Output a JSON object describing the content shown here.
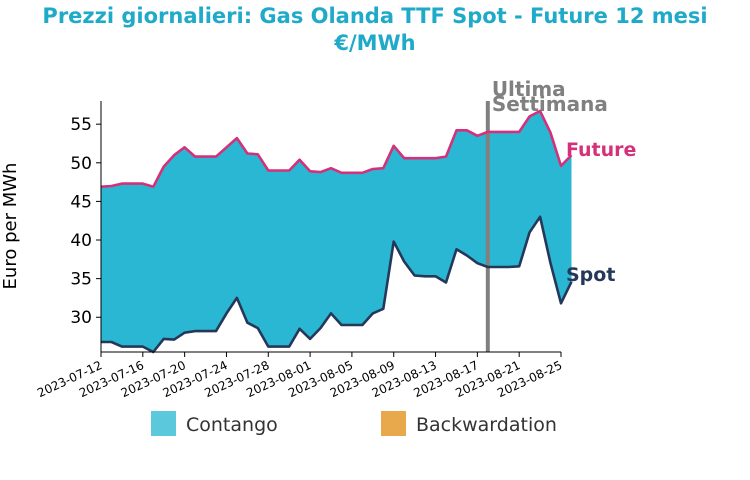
{
  "chart_data": {
    "type": "area",
    "title_line1": "Prezzi giornalieri: Gas Olanda TTF Spot - Future 12 mesi",
    "title_line2": "€/MWh",
    "ylabel": "Euro per MWh",
    "ylim": [
      25.5,
      58
    ],
    "yticks": [
      30,
      35,
      40,
      45,
      50,
      55
    ],
    "x_start": "2023-07-12",
    "x_end": "2023-08-25",
    "xticks": [
      "2023-07-12",
      "2023-07-16",
      "2023-07-20",
      "2023-07-24",
      "2023-07-28",
      "2023-08-01",
      "2023-08-05",
      "2023-08-09",
      "2023-08-13",
      "2023-08-17",
      "2023-08-21",
      "2023-08-25"
    ],
    "series": [
      {
        "name": "Future",
        "color": "#d4317a",
        "points": [
          [
            "2023-07-12",
            46.9
          ],
          [
            "2023-07-13",
            47.0
          ],
          [
            "2023-07-14",
            47.3
          ],
          [
            "2023-07-15",
            47.3
          ],
          [
            "2023-07-16",
            47.3
          ],
          [
            "2023-07-17",
            46.9
          ],
          [
            "2023-07-18",
            49.5
          ],
          [
            "2023-07-19",
            51.0
          ],
          [
            "2023-07-20",
            52.0
          ],
          [
            "2023-07-21",
            50.8
          ],
          [
            "2023-07-22",
            50.8
          ],
          [
            "2023-07-23",
            50.8
          ],
          [
            "2023-07-24",
            52.0
          ],
          [
            "2023-07-25",
            53.2
          ],
          [
            "2023-07-26",
            51.2
          ],
          [
            "2023-07-27",
            51.1
          ],
          [
            "2023-07-28",
            49.0
          ],
          [
            "2023-07-29",
            49.0
          ],
          [
            "2023-07-30",
            49.0
          ],
          [
            "2023-07-31",
            50.4
          ],
          [
            "2023-08-01",
            48.9
          ],
          [
            "2023-08-02",
            48.8
          ],
          [
            "2023-08-03",
            49.3
          ],
          [
            "2023-08-04",
            48.7
          ],
          [
            "2023-08-05",
            48.7
          ],
          [
            "2023-08-06",
            48.7
          ],
          [
            "2023-08-07",
            49.2
          ],
          [
            "2023-08-08",
            49.3
          ],
          [
            "2023-08-09",
            52.2
          ],
          [
            "2023-08-10",
            50.6
          ],
          [
            "2023-08-11",
            50.6
          ],
          [
            "2023-08-12",
            50.6
          ],
          [
            "2023-08-13",
            50.6
          ],
          [
            "2023-08-14",
            50.8
          ],
          [
            "2023-08-15",
            54.2
          ],
          [
            "2023-08-16",
            54.2
          ],
          [
            "2023-08-17",
            53.5
          ],
          [
            "2023-08-18",
            54.0
          ],
          [
            "2023-08-19",
            54.0
          ],
          [
            "2023-08-20",
            54.0
          ],
          [
            "2023-08-21",
            54.0
          ],
          [
            "2023-08-22",
            56.0
          ],
          [
            "2023-08-23",
            56.7
          ],
          [
            "2023-08-24",
            53.9
          ],
          [
            "2023-08-25",
            49.6
          ],
          [
            "2023-08-26",
            51.0
          ]
        ]
      },
      {
        "name": "Spot",
        "color": "#25385a",
        "points": [
          [
            "2023-07-12",
            26.8
          ],
          [
            "2023-07-13",
            26.8
          ],
          [
            "2023-07-14",
            26.2
          ],
          [
            "2023-07-15",
            26.2
          ],
          [
            "2023-07-16",
            26.2
          ],
          [
            "2023-07-17",
            25.5
          ],
          [
            "2023-07-18",
            27.2
          ],
          [
            "2023-07-19",
            27.1
          ],
          [
            "2023-07-20",
            28.0
          ],
          [
            "2023-07-21",
            28.2
          ],
          [
            "2023-07-22",
            28.2
          ],
          [
            "2023-07-23",
            28.2
          ],
          [
            "2023-07-24",
            30.5
          ],
          [
            "2023-07-25",
            32.5
          ],
          [
            "2023-07-26",
            29.3
          ],
          [
            "2023-07-27",
            28.6
          ],
          [
            "2023-07-28",
            26.2
          ],
          [
            "2023-07-29",
            26.2
          ],
          [
            "2023-07-30",
            26.2
          ],
          [
            "2023-07-31",
            28.5
          ],
          [
            "2023-08-01",
            27.2
          ],
          [
            "2023-08-02",
            28.6
          ],
          [
            "2023-08-03",
            30.5
          ],
          [
            "2023-08-04",
            29.0
          ],
          [
            "2023-08-05",
            29.0
          ],
          [
            "2023-08-06",
            29.0
          ],
          [
            "2023-08-07",
            30.5
          ],
          [
            "2023-08-08",
            31.1
          ],
          [
            "2023-08-09",
            39.8
          ],
          [
            "2023-08-10",
            37.2
          ],
          [
            "2023-08-11",
            35.4
          ],
          [
            "2023-08-12",
            35.3
          ],
          [
            "2023-08-13",
            35.3
          ],
          [
            "2023-08-14",
            34.5
          ],
          [
            "2023-08-15",
            38.8
          ],
          [
            "2023-08-16",
            38.0
          ],
          [
            "2023-08-17",
            37.0
          ],
          [
            "2023-08-18",
            36.5
          ],
          [
            "2023-08-19",
            36.5
          ],
          [
            "2023-08-20",
            36.5
          ],
          [
            "2023-08-21",
            36.6
          ],
          [
            "2023-08-22",
            41.0
          ],
          [
            "2023-08-23",
            43.0
          ],
          [
            "2023-08-24",
            37.0
          ],
          [
            "2023-08-25",
            31.8
          ],
          [
            "2023-08-26",
            34.6
          ]
        ]
      }
    ],
    "contango_color": "#29b7d3",
    "backwardation_color": "#e8a44a",
    "vline": {
      "date": "2023-08-18",
      "label_line1": "Ultima",
      "label_line2": "Settimana",
      "color": "#808080"
    },
    "legend": [
      {
        "label": "Contango",
        "color": "#5bc8dc"
      },
      {
        "label": "Backwardation",
        "color": "#e8a84c"
      }
    ],
    "title_color": "#1eaac8"
  }
}
